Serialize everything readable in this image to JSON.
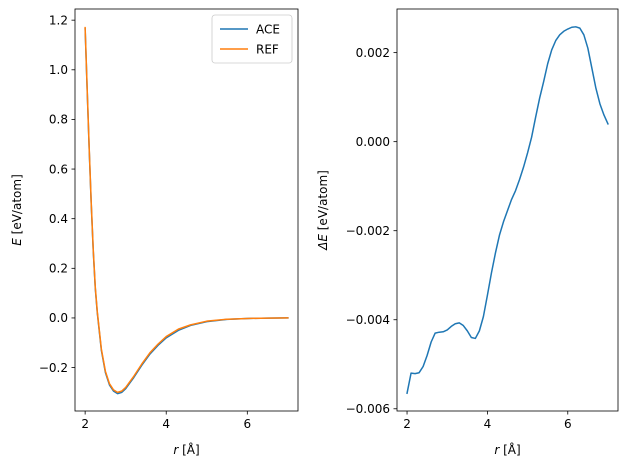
{
  "chart_data": [
    {
      "type": "line",
      "xlabel_symbol": "r",
      "xlabel_unit": " [Å]",
      "ylabel_symbol": "E",
      "ylabel_unit": " [eV/atom]",
      "xlim": [
        1.75,
        7.25
      ],
      "ylim": [
        -0.375,
        1.245
      ],
      "xticks": [
        2,
        4,
        6
      ],
      "xtick_labels": [
        "2",
        "4",
        "6"
      ],
      "yticks": [
        -0.2,
        0.0,
        0.2,
        0.4,
        0.6,
        0.8,
        1.0,
        1.2
      ],
      "ytick_labels": [
        "−0.2",
        "0.0",
        "0.2",
        "0.4",
        "0.6",
        "0.8",
        "1.0",
        "1.2"
      ],
      "legend": "top-right",
      "grid": false,
      "x": [
        2.0,
        2.05,
        2.1,
        2.15,
        2.2,
        2.25,
        2.3,
        2.4,
        2.5,
        2.6,
        2.7,
        2.8,
        2.9,
        3.0,
        3.2,
        3.4,
        3.6,
        3.8,
        4.0,
        4.3,
        4.6,
        5.0,
        5.5,
        6.0,
        6.5,
        7.0
      ],
      "series": [
        {
          "name": "ACE",
          "color": "#1f77b4",
          "values": [
            1.165,
            0.92,
            0.68,
            0.46,
            0.27,
            0.12,
            0.02,
            -0.13,
            -0.22,
            -0.27,
            -0.295,
            -0.305,
            -0.3,
            -0.285,
            -0.24,
            -0.19,
            -0.145,
            -0.11,
            -0.08,
            -0.05,
            -0.03,
            -0.015,
            -0.006,
            -0.002,
            -0.0005,
            0.0
          ]
        },
        {
          "name": "REF",
          "color": "#ff7f0e",
          "values": [
            1.17,
            0.925,
            0.685,
            0.465,
            0.275,
            0.125,
            0.025,
            -0.125,
            -0.215,
            -0.265,
            -0.29,
            -0.3,
            -0.295,
            -0.28,
            -0.235,
            -0.185,
            -0.14,
            -0.105,
            -0.075,
            -0.045,
            -0.028,
            -0.013,
            -0.005,
            -0.002,
            -0.0005,
            0.0
          ]
        }
      ]
    },
    {
      "type": "line",
      "xlabel_symbol": "r",
      "xlabel_unit": " [Å]",
      "ylabel_symbol": "ΔE",
      "ylabel_unit": " [eV/atom]",
      "xlim": [
        1.75,
        7.25
      ],
      "ylim": [
        -0.00605,
        0.00298
      ],
      "xticks": [
        2,
        4,
        6
      ],
      "xtick_labels": [
        "2",
        "4",
        "6"
      ],
      "yticks": [
        -0.006,
        -0.004,
        -0.002,
        0.0,
        0.002
      ],
      "ytick_labels": [
        "−0.006",
        "−0.004",
        "−0.002",
        "0.000",
        "0.002"
      ],
      "grid": false,
      "x": [
        2.0,
        2.1,
        2.2,
        2.3,
        2.4,
        2.5,
        2.6,
        2.7,
        2.8,
        2.9,
        3.0,
        3.1,
        3.2,
        3.3,
        3.4,
        3.5,
        3.6,
        3.7,
        3.8,
        3.9,
        4.0,
        4.1,
        4.2,
        4.3,
        4.4,
        4.5,
        4.6,
        4.7,
        4.8,
        4.9,
        5.0,
        5.1,
        5.2,
        5.3,
        5.4,
        5.5,
        5.6,
        5.7,
        5.8,
        5.9,
        6.0,
        6.1,
        6.2,
        6.3,
        6.4,
        6.5,
        6.6,
        6.7,
        6.8,
        6.9,
        7.0
      ],
      "series": [
        {
          "color": "#1f77b4",
          "values": [
            -0.00565,
            -0.0052,
            -0.00521,
            -0.00519,
            -0.00505,
            -0.0048,
            -0.0045,
            -0.0043,
            -0.00428,
            -0.00427,
            -0.00423,
            -0.00415,
            -0.00409,
            -0.00407,
            -0.00413,
            -0.00425,
            -0.0044,
            -0.00442,
            -0.00425,
            -0.00393,
            -0.00345,
            -0.00295,
            -0.0025,
            -0.0021,
            -0.0018,
            -0.00155,
            -0.0013,
            -0.0011,
            -0.00085,
            -0.00057,
            -0.00025,
            0.0001,
            0.00055,
            0.00098,
            0.00135,
            0.00175,
            0.00206,
            0.00227,
            0.0024,
            0.00248,
            0.00253,
            0.00257,
            0.00258,
            0.00255,
            0.0024,
            0.0021,
            0.00165,
            0.0012,
            0.00085,
            0.0006,
            0.0004
          ]
        }
      ]
    }
  ]
}
